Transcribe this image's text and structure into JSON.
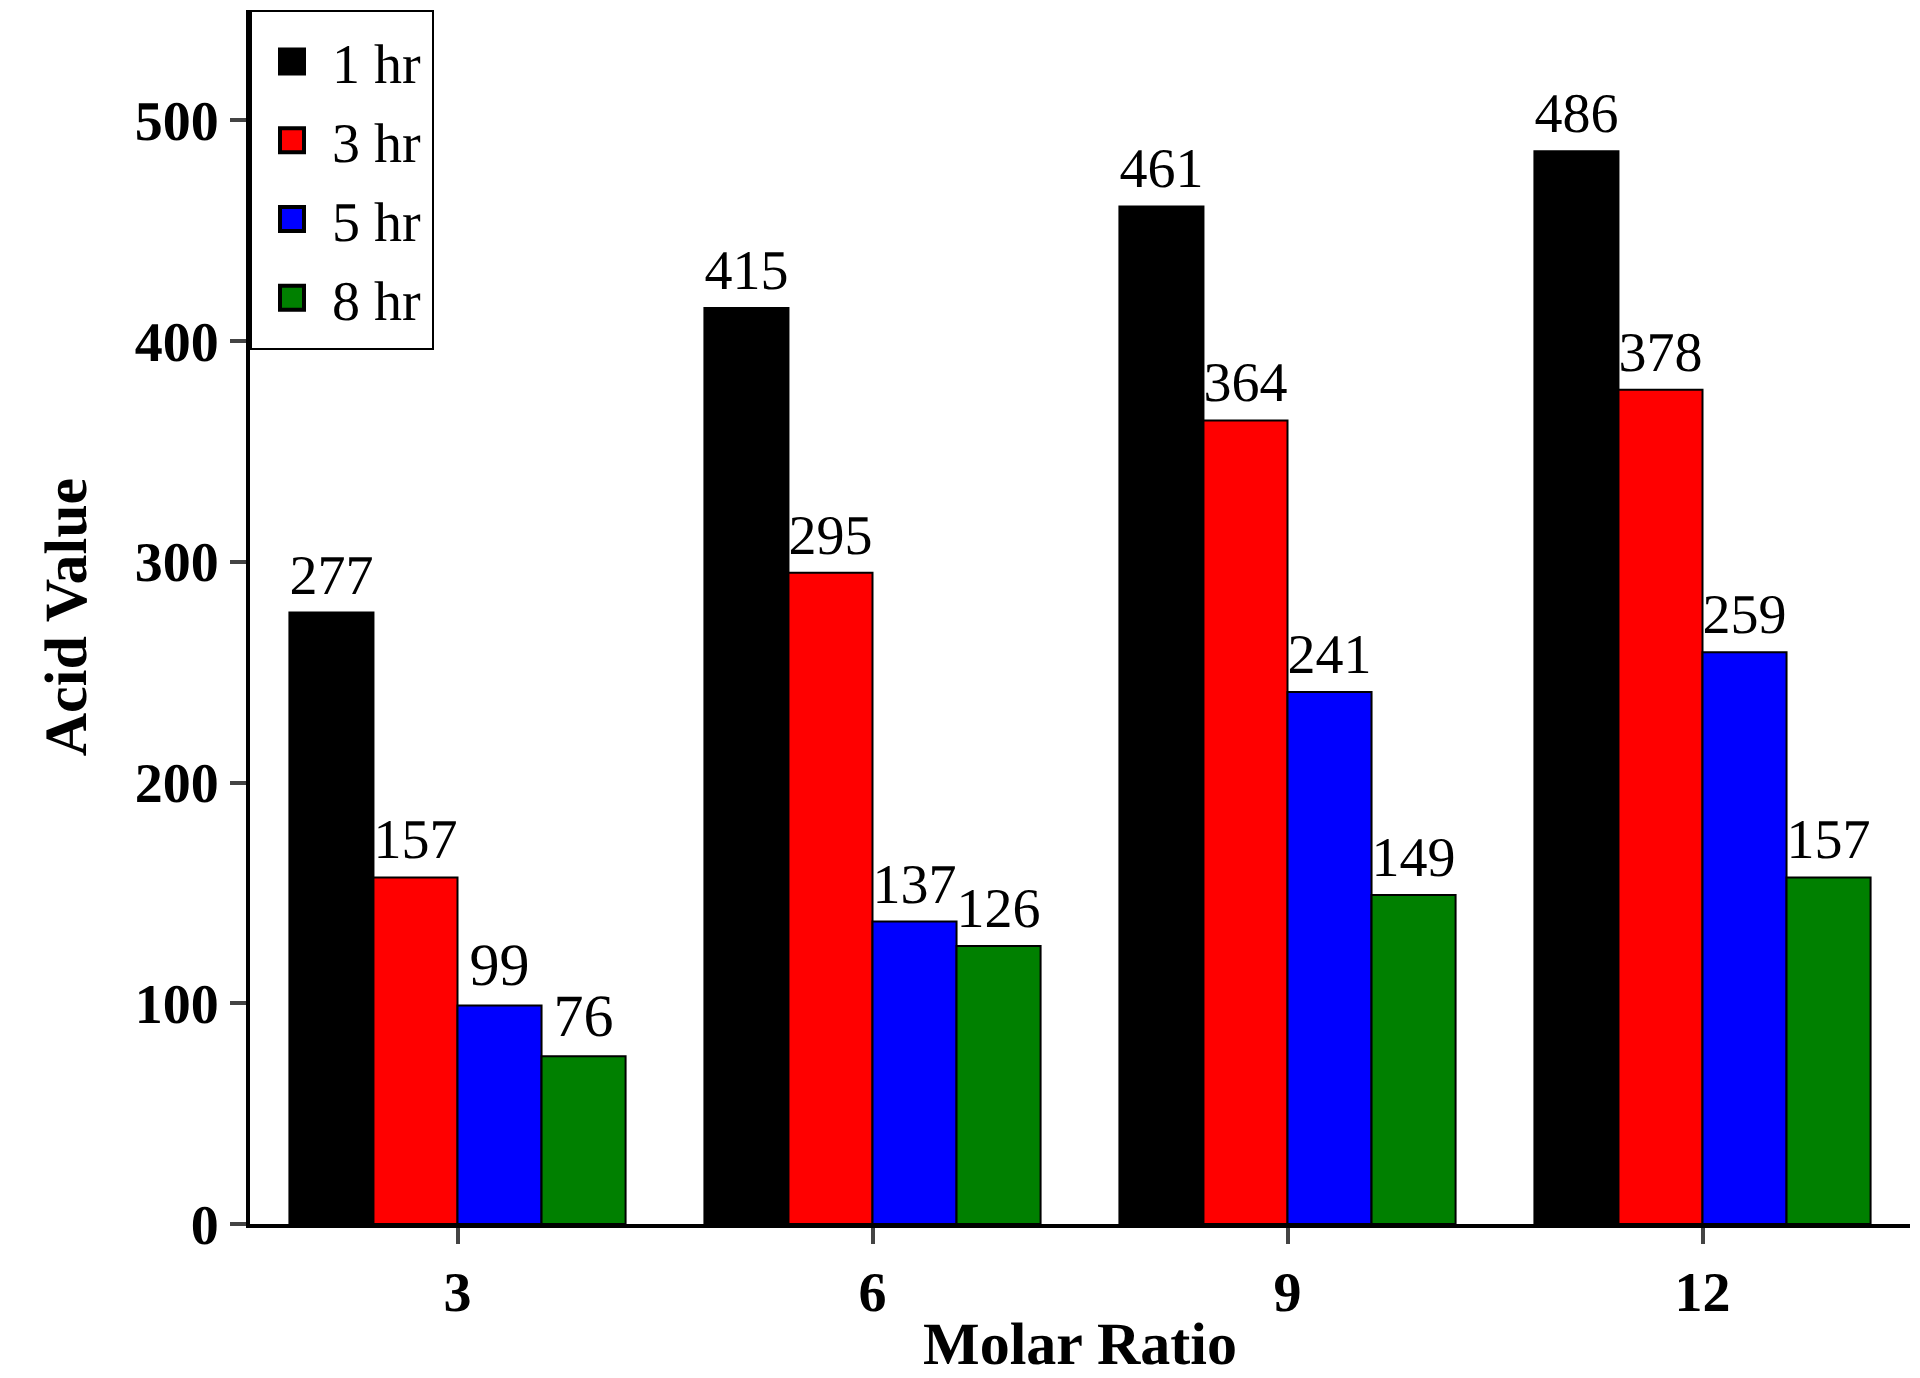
{
  "chart_data": {
    "type": "bar",
    "xlabel": "Molar Ratio",
    "ylabel": "Acid Value",
    "categories": [
      "3",
      "6",
      "9",
      "12"
    ],
    "series": [
      {
        "name": "1 hr",
        "color": "#000000",
        "values": [
          277,
          415,
          461,
          486
        ]
      },
      {
        "name": "3 hr",
        "color": "#ff0000",
        "values": [
          157,
          295,
          364,
          378
        ]
      },
      {
        "name": "5 hr",
        "color": "#0000ff",
        "values": [
          99,
          137,
          241,
          259
        ]
      },
      {
        "name": "8 hr",
        "color": "#008000",
        "values": [
          76,
          126,
          149,
          157
        ]
      }
    ],
    "ylim": [
      0,
      550
    ],
    "yticks": [
      0,
      100,
      200,
      300,
      400,
      500
    ],
    "data_labels": true,
    "legend": "top left"
  }
}
